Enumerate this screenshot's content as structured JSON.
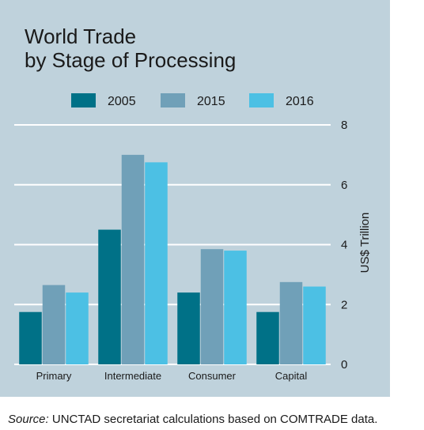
{
  "chart_data": {
    "type": "bar",
    "title": [
      "World Trade",
      "by Stage of Processing"
    ],
    "categories": [
      "Primary",
      "Intermediate",
      "Consumer",
      "Capital"
    ],
    "series": [
      {
        "name": "2005",
        "color": "#007187",
        "values": [
          1.75,
          4.5,
          2.4,
          1.75
        ]
      },
      {
        "name": "2015",
        "color": "#70a0b8",
        "values": [
          2.65,
          7.0,
          3.85,
          2.75
        ]
      },
      {
        "name": "2016",
        "color": "#4cc0e4",
        "values": [
          2.4,
          6.75,
          3.8,
          2.6
        ]
      }
    ],
    "ylabel": "US$ Trillion",
    "ylim": [
      0,
      8
    ],
    "yticks": [
      0,
      2,
      4,
      6,
      8
    ],
    "grid": true,
    "legend": "top",
    "y_axis_side": "right"
  },
  "source": {
    "label": "Source:",
    "text": " UNCTAD secretariat calculations based on COMTRADE data."
  }
}
